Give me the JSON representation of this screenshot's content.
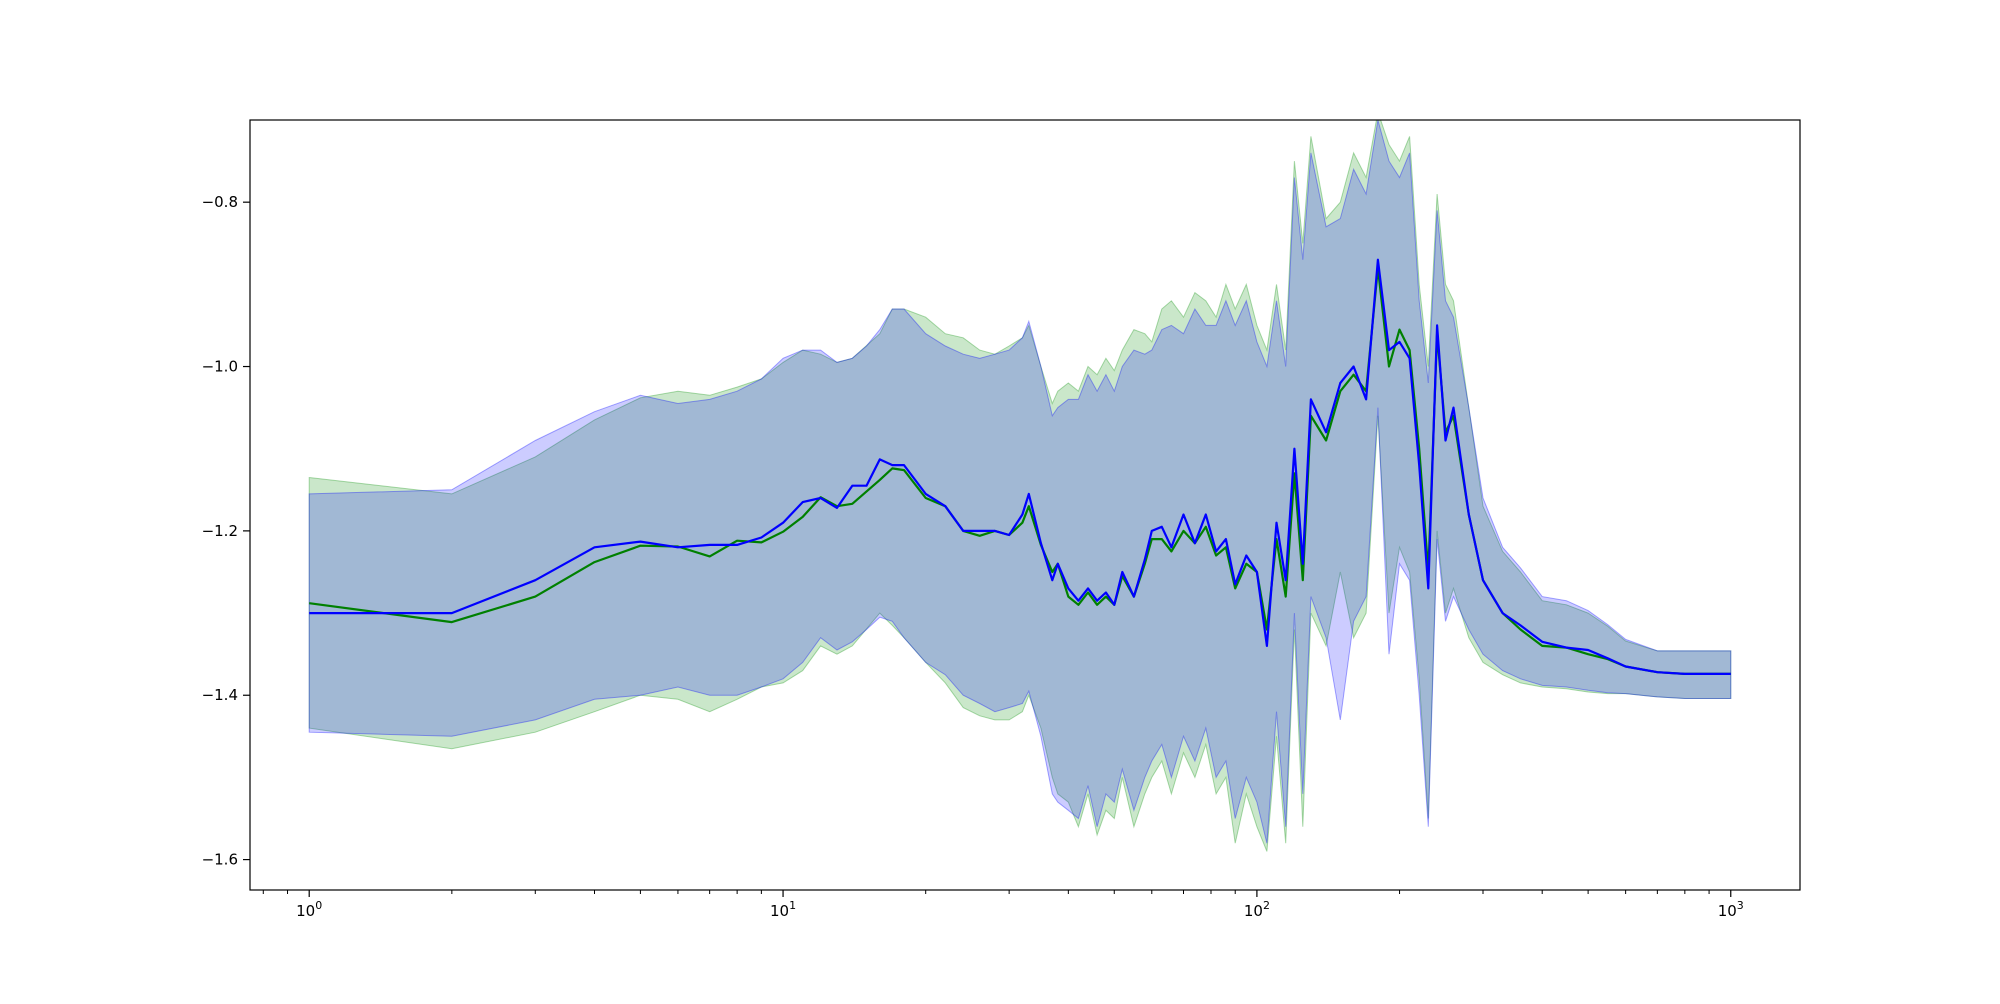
{
  "chart_data": {
    "type": "line",
    "title": "",
    "xlabel": "",
    "ylabel": "",
    "xscale": "log",
    "xlim": [
      0.75,
      1400
    ],
    "ylim": [
      -1.637,
      -0.7
    ],
    "grid": false,
    "legend": "none",
    "x_ticks": [
      {
        "value": 1,
        "base": "10",
        "exp": "0"
      },
      {
        "value": 10,
        "base": "10",
        "exp": "1"
      },
      {
        "value": 100,
        "base": "10",
        "exp": "2"
      },
      {
        "value": 1000,
        "base": "10",
        "exp": "3"
      }
    ],
    "y_ticks": [
      {
        "value": -0.8,
        "label": "−0.8"
      },
      {
        "value": -1.0,
        "label": "−1.0"
      },
      {
        "value": -1.2,
        "label": "−1.2"
      },
      {
        "value": -1.4,
        "label": "−1.4"
      },
      {
        "value": -1.6,
        "label": "−1.6"
      }
    ],
    "series": [
      {
        "color": "#008000",
        "band_color": "#2ca02c",
        "band_opacity": 0.25,
        "x": [
          1,
          2,
          3,
          4,
          5,
          6,
          7,
          8,
          9,
          10,
          11,
          12,
          13,
          14,
          16,
          17,
          18,
          20,
          22,
          24,
          26,
          28,
          30,
          32,
          33,
          35,
          37,
          38,
          40,
          42,
          44,
          46,
          48,
          50,
          52,
          55,
          58,
          60,
          63,
          66,
          70,
          74,
          78,
          82,
          86,
          90,
          95,
          100,
          105,
          110,
          115,
          120,
          125,
          130,
          140,
          150,
          160,
          170,
          180,
          190,
          200,
          210,
          220,
          230,
          240,
          250,
          260,
          280,
          300,
          330,
          360,
          400,
          450,
          500,
          550,
          600,
          700,
          800,
          900,
          1000
        ],
        "mean": [
          -1.288,
          -1.311,
          -1.28,
          -1.238,
          -1.218,
          -1.219,
          -1.231,
          -1.212,
          -1.214,
          -1.201,
          -1.183,
          -1.159,
          -1.17,
          -1.167,
          -1.138,
          -1.124,
          -1.126,
          -1.16,
          -1.17,
          -1.2,
          -1.206,
          -1.2,
          -1.205,
          -1.19,
          -1.17,
          -1.217,
          -1.25,
          -1.24,
          -1.28,
          -1.29,
          -1.275,
          -1.29,
          -1.28,
          -1.29,
          -1.255,
          -1.28,
          -1.24,
          -1.21,
          -1.21,
          -1.225,
          -1.2,
          -1.215,
          -1.195,
          -1.23,
          -1.22,
          -1.27,
          -1.24,
          -1.25,
          -1.32,
          -1.21,
          -1.28,
          -1.13,
          -1.26,
          -1.06,
          -1.09,
          -1.03,
          -1.01,
          -1.03,
          -0.88,
          -1.0,
          -0.955,
          -0.98,
          -1.1,
          -1.25,
          -0.96,
          -1.08,
          -1.06,
          -1.18,
          -1.26,
          -1.3,
          -1.32,
          -1.34,
          -1.342,
          -1.35,
          -1.356,
          -1.365,
          -1.372,
          -1.374,
          -1.374,
          -1.374
        ],
        "upper": [
          -1.135,
          -1.155,
          -1.11,
          -1.065,
          -1.038,
          -1.03,
          -1.035,
          -1.025,
          -1.015,
          -0.995,
          -0.98,
          -0.985,
          -0.995,
          -0.99,
          -0.96,
          -0.93,
          -0.93,
          -0.94,
          -0.96,
          -0.965,
          -0.98,
          -0.985,
          -0.975,
          -0.965,
          -0.95,
          -1.0,
          -1.045,
          -1.03,
          -1.02,
          -1.03,
          -1.0,
          -1.01,
          -0.99,
          -1.005,
          -0.98,
          -0.955,
          -0.96,
          -0.97,
          -0.93,
          -0.92,
          -0.94,
          -0.91,
          -0.92,
          -0.94,
          -0.9,
          -0.93,
          -0.9,
          -0.95,
          -0.98,
          -0.9,
          -0.98,
          -0.75,
          -0.85,
          -0.72,
          -0.82,
          -0.8,
          -0.74,
          -0.77,
          -0.69,
          -0.73,
          -0.75,
          -0.72,
          -0.9,
          -1.0,
          -0.79,
          -0.9,
          -0.92,
          -1.05,
          -1.17,
          -1.225,
          -1.25,
          -1.285,
          -1.29,
          -1.3,
          -1.316,
          -1.334,
          -1.346,
          -1.346,
          -1.346,
          -1.346
        ],
        "lower": [
          -1.44,
          -1.465,
          -1.445,
          -1.42,
          -1.4,
          -1.405,
          -1.42,
          -1.405,
          -1.39,
          -1.385,
          -1.37,
          -1.34,
          -1.35,
          -1.34,
          -1.3,
          -1.315,
          -1.33,
          -1.36,
          -1.385,
          -1.415,
          -1.425,
          -1.43,
          -1.43,
          -1.42,
          -1.4,
          -1.44,
          -1.5,
          -1.52,
          -1.53,
          -1.56,
          -1.52,
          -1.57,
          -1.54,
          -1.55,
          -1.5,
          -1.56,
          -1.52,
          -1.5,
          -1.48,
          -1.52,
          -1.47,
          -1.5,
          -1.46,
          -1.52,
          -1.5,
          -1.58,
          -1.52,
          -1.56,
          -1.59,
          -1.45,
          -1.58,
          -1.32,
          -1.56,
          -1.3,
          -1.34,
          -1.25,
          -1.33,
          -1.3,
          -1.06,
          -1.3,
          -1.22,
          -1.25,
          -1.38,
          -1.55,
          -1.2,
          -1.3,
          -1.27,
          -1.33,
          -1.36,
          -1.375,
          -1.385,
          -1.39,
          -1.392,
          -1.396,
          -1.398,
          -1.398,
          -1.402,
          -1.404,
          -1.404,
          -1.404
        ]
      },
      {
        "color": "#0000ff",
        "band_color": "#0000ff",
        "band_opacity": 0.2,
        "x": [
          1,
          2,
          3,
          4,
          5,
          6,
          7,
          8,
          9,
          10,
          11,
          12,
          13,
          14,
          15,
          16,
          17,
          18,
          20,
          22,
          24,
          26,
          28,
          30,
          32,
          33,
          35,
          37,
          38,
          40,
          42,
          44,
          46,
          48,
          50,
          52,
          55,
          58,
          60,
          63,
          66,
          70,
          74,
          78,
          82,
          86,
          90,
          95,
          100,
          105,
          110,
          115,
          120,
          125,
          130,
          140,
          150,
          160,
          170,
          180,
          190,
          200,
          210,
          220,
          230,
          240,
          250,
          260,
          280,
          300,
          330,
          360,
          400,
          450,
          500,
          550,
          600,
          700,
          800,
          900,
          1000
        ],
        "mean": [
          -1.3,
          -1.3,
          -1.26,
          -1.22,
          -1.213,
          -1.22,
          -1.217,
          -1.217,
          -1.208,
          -1.19,
          -1.165,
          -1.16,
          -1.172,
          -1.145,
          -1.145,
          -1.113,
          -1.12,
          -1.12,
          -1.155,
          -1.17,
          -1.2,
          -1.2,
          -1.2,
          -1.205,
          -1.18,
          -1.155,
          -1.215,
          -1.26,
          -1.24,
          -1.27,
          -1.285,
          -1.27,
          -1.285,
          -1.275,
          -1.29,
          -1.25,
          -1.28,
          -1.235,
          -1.2,
          -1.195,
          -1.22,
          -1.18,
          -1.215,
          -1.18,
          -1.225,
          -1.21,
          -1.265,
          -1.23,
          -1.25,
          -1.34,
          -1.19,
          -1.26,
          -1.1,
          -1.24,
          -1.04,
          -1.08,
          -1.02,
          -1.0,
          -1.04,
          -0.87,
          -0.98,
          -0.97,
          -0.99,
          -1.12,
          -1.27,
          -0.95,
          -1.09,
          -1.05,
          -1.18,
          -1.26,
          -1.3,
          -1.315,
          -1.335,
          -1.342,
          -1.345,
          -1.355,
          -1.365,
          -1.372,
          -1.374,
          -1.374,
          -1.374
        ],
        "upper": [
          -1.155,
          -1.15,
          -1.09,
          -1.055,
          -1.035,
          -1.045,
          -1.04,
          -1.03,
          -1.015,
          -0.99,
          -0.98,
          -0.98,
          -0.995,
          -0.99,
          -0.975,
          -0.955,
          -0.93,
          -0.93,
          -0.96,
          -0.975,
          -0.985,
          -0.99,
          -0.985,
          -0.98,
          -0.965,
          -0.945,
          -1.0,
          -1.06,
          -1.05,
          -1.04,
          -1.04,
          -1.01,
          -1.03,
          -1.01,
          -1.03,
          -1.0,
          -0.98,
          -0.985,
          -0.98,
          -0.955,
          -0.95,
          -0.96,
          -0.93,
          -0.95,
          -0.95,
          -0.92,
          -0.95,
          -0.92,
          -0.97,
          -1.0,
          -0.92,
          -1.0,
          -0.77,
          -0.87,
          -0.74,
          -0.83,
          -0.82,
          -0.76,
          -0.79,
          -0.7,
          -0.75,
          -0.77,
          -0.74,
          -0.92,
          -1.02,
          -0.81,
          -0.92,
          -0.94,
          -1.05,
          -1.16,
          -1.22,
          -1.245,
          -1.28,
          -1.285,
          -1.297,
          -1.314,
          -1.332,
          -1.346,
          -1.346,
          -1.346,
          -1.346
        ],
        "lower": [
          -1.445,
          -1.45,
          -1.43,
          -1.405,
          -1.4,
          -1.39,
          -1.4,
          -1.4,
          -1.39,
          -1.38,
          -1.36,
          -1.33,
          -1.345,
          -1.335,
          -1.32,
          -1.305,
          -1.31,
          -1.33,
          -1.36,
          -1.375,
          -1.4,
          -1.41,
          -1.42,
          -1.415,
          -1.41,
          -1.395,
          -1.45,
          -1.52,
          -1.53,
          -1.54,
          -1.55,
          -1.51,
          -1.56,
          -1.52,
          -1.53,
          -1.49,
          -1.54,
          -1.5,
          -1.48,
          -1.46,
          -1.5,
          -1.45,
          -1.48,
          -1.44,
          -1.5,
          -1.48,
          -1.55,
          -1.5,
          -1.53,
          -1.58,
          -1.42,
          -1.56,
          -1.3,
          -1.52,
          -1.28,
          -1.33,
          -1.43,
          -1.31,
          -1.28,
          -1.05,
          -1.35,
          -1.24,
          -1.26,
          -1.4,
          -1.56,
          -1.21,
          -1.31,
          -1.28,
          -1.32,
          -1.35,
          -1.37,
          -1.38,
          -1.388,
          -1.39,
          -1.394,
          -1.397,
          -1.398,
          -1.402,
          -1.404,
          -1.404,
          -1.404
        ]
      }
    ]
  }
}
